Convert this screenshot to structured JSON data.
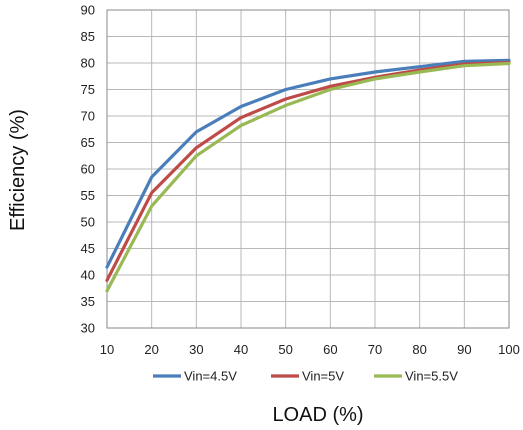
{
  "chart_data": {
    "type": "line",
    "xlabel": "LOAD (%)",
    "ylabel": "Efficiency (%)",
    "xlim": [
      10,
      100
    ],
    "ylim": [
      30,
      90
    ],
    "x": [
      10,
      20,
      30,
      40,
      50,
      60,
      70,
      80,
      90,
      100
    ],
    "x_ticks": [
      10,
      20,
      30,
      40,
      50,
      60,
      70,
      80,
      90,
      100
    ],
    "y_ticks": [
      30,
      35,
      40,
      45,
      50,
      55,
      60,
      65,
      70,
      75,
      80,
      85,
      90
    ],
    "grid": true,
    "legend_position": "bottom",
    "series": [
      {
        "name": "Vin=4.5V",
        "color": "#4a7ebb",
        "values": [
          41.5,
          58.5,
          67,
          71.8,
          75,
          77,
          78.3,
          79.3,
          80.3,
          80.5
        ]
      },
      {
        "name": "Vin=5V",
        "color": "#be4b48",
        "values": [
          39,
          55.5,
          64,
          69.7,
          73.2,
          75.6,
          77.3,
          78.7,
          79.8,
          80.1
        ]
      },
      {
        "name": "Vin=5.5V",
        "color": "#98b954",
        "values": [
          37,
          53,
          62.5,
          68.2,
          72,
          75,
          77,
          78.3,
          79.5,
          79.9
        ]
      }
    ]
  }
}
